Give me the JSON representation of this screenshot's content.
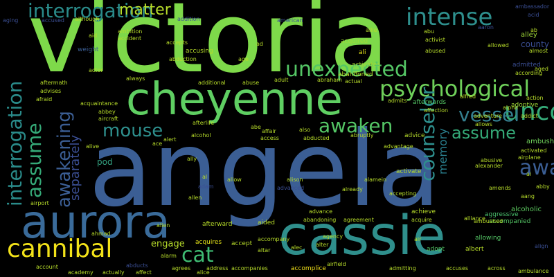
{
  "words": [
    {
      "text": "victoria",
      "color": "#7ed94a"
    },
    {
      "text": "angela",
      "color": "#3b5e94"
    },
    {
      "text": "cheyenne",
      "color": "#5fcf62"
    },
    {
      "text": "cassie",
      "color": "#2f8f8c"
    },
    {
      "text": "aurora",
      "color": "#3a6b9a"
    },
    {
      "text": "psychological",
      "color": "#6fd05a"
    },
    {
      "text": "cannibal",
      "color": "#f2e219"
    },
    {
      "text": "interrogation",
      "color": "#2a8b8a"
    },
    {
      "text": "matter",
      "color": "#b7dc2a"
    },
    {
      "text": "unexpected",
      "color": "#54c665"
    },
    {
      "text": "intense",
      "color": "#2e8f8d"
    },
    {
      "text": "uncover",
      "color": "#35aa78"
    },
    {
      "text": "cat",
      "color": "#3fbc73"
    },
    {
      "text": "awaken",
      "color": "#54c665"
    },
    {
      "text": "mouse",
      "color": "#2e8f8d"
    },
    {
      "text": "vessel",
      "color": "#347f8f"
    },
    {
      "text": "assume",
      "color": "#35aa78"
    },
    {
      "text": "awakening",
      "color": "#3b5e94"
    },
    {
      "text": "engage",
      "color": "#b7dc2a"
    },
    {
      "text": "pod",
      "color": "#33a07f"
    },
    {
      "text": "counselor",
      "color": "#2e8f8d"
    },
    {
      "text": "gu",
      "color": "#6fd05a"
    },
    {
      "text": "separately",
      "color": "#3b4f95"
    },
    {
      "text": "memory",
      "color": "#2a7f8e"
    },
    {
      "text": "weight",
      "color": "#3b5e94"
    },
    {
      "text": "county",
      "color": "#3b4f95"
    },
    {
      "text": "accepted",
      "color": "#a5db35"
    },
    {
      "text": "accidentally",
      "color": "#6fd05a"
    },
    {
      "text": "aggressive",
      "color": "#4ac16d"
    },
    {
      "text": "accompanied",
      "color": "#54c665"
    },
    {
      "text": "acquired",
      "color": "#9fd938"
    },
    {
      "text": "ali",
      "color": "#e6e419"
    },
    {
      "text": "aa",
      "color": "#54c665"
    },
    {
      "text": "accomplice",
      "color": "#f2e219"
    },
    {
      "text": "acrobatic",
      "color": "#3b4f95"
    },
    {
      "text": "alley",
      "color": "#9fd938"
    },
    {
      "text": "alcoholic",
      "color": "#5fcf62"
    },
    {
      "text": "ambush",
      "color": "#6fd05a"
    },
    {
      "text": "achieve",
      "color": "#b7dc2a"
    },
    {
      "text": "admitted",
      "color": "#3b4f95"
    },
    {
      "text": "accusing",
      "color": "#b7dc2a"
    },
    {
      "text": "accept",
      "color": "#b7dc2a"
    },
    {
      "text": "aided",
      "color": "#b7dc2a"
    },
    {
      "text": "afterward",
      "color": "#b7dc2a"
    },
    {
      "text": "acquires",
      "color": "#e6e419"
    },
    {
      "text": "afterwards",
      "color": "#54c665"
    },
    {
      "text": "advice",
      "color": "#b7dc2a"
    },
    {
      "text": "adoptive",
      "color": "#9fd938"
    },
    {
      "text": "ambiguous",
      "color": "#4a2f7a"
    },
    {
      "text": "abandoned",
      "color": "#b7dc2a"
    },
    {
      "text": "activates",
      "color": "#9fd938"
    },
    {
      "text": "activate",
      "color": "#b7dc2a"
    },
    {
      "text": "alters",
      "color": "#b7dc2a"
    },
    {
      "text": "albert",
      "color": "#b7dc2a"
    },
    {
      "text": "adopt",
      "color": "#54c665"
    },
    {
      "text": "allowing",
      "color": "#54c665"
    },
    {
      "text": "abbey",
      "color": "#b7dc2a"
    },
    {
      "text": "accidentally",
      "color": "#6fd05a"
    },
    {
      "text": "aging",
      "color": "#3b4f95"
    },
    {
      "text": "accused",
      "color": "#3b4f95"
    },
    {
      "text": "although",
      "color": "#b7dc2a"
    },
    {
      "text": "abigail",
      "color": "#3b4f95"
    },
    {
      "text": "addition",
      "color": "#3b4f95"
    },
    {
      "text": "african",
      "color": "#3b4f95"
    },
    {
      "text": "alerted",
      "color": "#3b4f95"
    },
    {
      "text": "agreeing",
      "color": "#3b4f95"
    },
    {
      "text": "ambassador",
      "color": "#3b4f95"
    },
    {
      "text": "acid",
      "color": "#3b4f95"
    },
    {
      "text": "acknowledges",
      "color": "#3b4f95"
    },
    {
      "text": "aaron",
      "color": "#3b4f95"
    },
    {
      "text": "aim",
      "color": "#3b4f95"
    },
    {
      "text": "american",
      "color": "#3b4f95"
    },
    {
      "text": "aid",
      "color": "#b7dc2a"
    },
    {
      "text": "ambition",
      "color": "#b7dc2a"
    },
    {
      "text": "act",
      "color": "#b7dc2a"
    },
    {
      "text": "able",
      "color": "#3b4f95"
    },
    {
      "text": "allie",
      "color": "#b7dc2a"
    },
    {
      "text": "abu",
      "color": "#b7dc2a"
    },
    {
      "text": "activist",
      "color": "#b7dc2a"
    },
    {
      "text": "agree",
      "color": "#3b4f95"
    },
    {
      "text": "accident",
      "color": "#b7dc2a"
    },
    {
      "text": "accepts",
      "color": "#b7dc2a"
    },
    {
      "text": "admiral",
      "color": "#b7dc2a"
    },
    {
      "text": "allowed",
      "color": "#b7dc2a"
    },
    {
      "text": "almost",
      "color": "#b7dc2a"
    },
    {
      "text": "ambitious",
      "color": "#b7dc2a"
    },
    {
      "text": "aide",
      "color": "#3b4f95"
    },
    {
      "text": "abduction",
      "color": "#b7dc2a"
    },
    {
      "text": "age",
      "color": "#b7dc2a"
    },
    {
      "text": "alone",
      "color": "#3b4f95"
    },
    {
      "text": "abused",
      "color": "#b7dc2a"
    },
    {
      "text": "according",
      "color": "#b7dc2a"
    },
    {
      "text": "aged",
      "color": "#b7dc2a"
    },
    {
      "text": "ambrose",
      "color": "#3b4f95"
    },
    {
      "text": "actor",
      "color": "#b7dc2a"
    },
    {
      "text": "america",
      "color": "#3b4f95"
    },
    {
      "text": "adult",
      "color": "#b7dc2a"
    },
    {
      "text": "abraham",
      "color": "#b7dc2a"
    },
    {
      "text": "actual",
      "color": "#b7dc2a"
    },
    {
      "text": "always",
      "color": "#b7dc2a"
    },
    {
      "text": "additional",
      "color": "#b7dc2a"
    },
    {
      "text": "abuse",
      "color": "#b7dc2a"
    },
    {
      "text": "aftermath",
      "color": "#b7dc2a"
    },
    {
      "text": "admits",
      "color": "#b7dc2a"
    },
    {
      "text": "alfred",
      "color": "#b7dc2a"
    },
    {
      "text": "action",
      "color": "#b7dc2a"
    },
    {
      "text": "advises",
      "color": "#b7dc2a"
    },
    {
      "text": "acknowledge",
      "color": "#3b4f95"
    },
    {
      "text": "afraid",
      "color": "#b7dc2a"
    },
    {
      "text": "absence",
      "color": "#3b4f95"
    },
    {
      "text": "acquaintance",
      "color": "#b7dc2a"
    },
    {
      "text": "allas",
      "color": "#3b4f95"
    },
    {
      "text": "affection",
      "color": "#b7dc2a"
    },
    {
      "text": "alpha",
      "color": "#b7dc2a"
    },
    {
      "text": "addict",
      "color": "#b7dc2a"
    },
    {
      "text": "abbey",
      "color": "#b7dc2a"
    },
    {
      "text": "aircraft",
      "color": "#b7dc2a"
    },
    {
      "text": "afterlife",
      "color": "#b7dc2a"
    },
    {
      "text": "abe",
      "color": "#b7dc2a"
    },
    {
      "text": "activity",
      "color": "#3b4f95"
    },
    {
      "text": "abruptly",
      "color": "#b7dc2a"
    },
    {
      "text": "allows",
      "color": "#b7dc2a"
    },
    {
      "text": "alright",
      "color": "#3b4f95"
    },
    {
      "text": "alive",
      "color": "#b7dc2a"
    },
    {
      "text": "afford",
      "color": "#3b4f95"
    },
    {
      "text": "alcohol",
      "color": "#b7dc2a"
    },
    {
      "text": "affair",
      "color": "#b7dc2a"
    },
    {
      "text": "also",
      "color": "#b7dc2a"
    },
    {
      "text": "access",
      "color": "#b7dc2a"
    },
    {
      "text": "abducted",
      "color": "#b7dc2a"
    },
    {
      "text": "advantage",
      "color": "#b7dc2a"
    },
    {
      "text": "adventure",
      "color": "#b7dc2a"
    },
    {
      "text": "ace",
      "color": "#b7dc2a"
    },
    {
      "text": "alert",
      "color": "#b7dc2a"
    },
    {
      "text": "activated",
      "color": "#b7dc2a"
    },
    {
      "text": "airplane",
      "color": "#b7dc2a"
    },
    {
      "text": "abusive",
      "color": "#b7dc2a"
    },
    {
      "text": "alongside",
      "color": "#3b4f95"
    },
    {
      "text": "abandon",
      "color": "#3b4f95"
    },
    {
      "text": "alexander",
      "color": "#b7dc2a"
    },
    {
      "text": "abortion",
      "color": "#3b4f95"
    },
    {
      "text": "abby",
      "color": "#b7dc2a"
    },
    {
      "text": "ally",
      "color": "#b7dc2a"
    },
    {
      "text": "allow",
      "color": "#b7dc2a"
    },
    {
      "text": "alison",
      "color": "#b7dc2a"
    },
    {
      "text": "alamein",
      "color": "#b7dc2a"
    },
    {
      "text": "amid",
      "color": "#b7dc2a"
    },
    {
      "text": "aboard",
      "color": "#b7dc2a"
    },
    {
      "text": "adam",
      "color": "#3b4f95"
    },
    {
      "text": "advanced",
      "color": "#3b4f95"
    },
    {
      "text": "already",
      "color": "#b7dc2a"
    },
    {
      "text": "accepting",
      "color": "#b7dc2a"
    },
    {
      "text": "amends",
      "color": "#b7dc2a"
    },
    {
      "text": "aang",
      "color": "#b7dc2a"
    },
    {
      "text": "allen",
      "color": "#b7dc2a"
    },
    {
      "text": "acting",
      "color": "#b7dc2a"
    },
    {
      "text": "airport",
      "color": "#b7dc2a"
    },
    {
      "text": "advance",
      "color": "#b7dc2a"
    },
    {
      "text": "actress",
      "color": "#3b4f95"
    },
    {
      "text": "abandoning",
      "color": "#b7dc2a"
    },
    {
      "text": "agreement",
      "color": "#b7dc2a"
    },
    {
      "text": "acquire",
      "color": "#b7dc2a"
    },
    {
      "text": "alliance",
      "color": "#b7dc2a"
    },
    {
      "text": "ambushed",
      "color": "#b7dc2a"
    },
    {
      "text": "alien",
      "color": "#b7dc2a"
    },
    {
      "text": "ahmad",
      "color": "#b7dc2a"
    },
    {
      "text": "accompany",
      "color": "#b7dc2a"
    },
    {
      "text": "agency",
      "color": "#b7dc2a"
    },
    {
      "text": "air",
      "color": "#b7dc2a"
    },
    {
      "text": "alter",
      "color": "#b7dc2a"
    },
    {
      "text": "alec",
      "color": "#b7dc2a"
    },
    {
      "text": "altar",
      "color": "#b7dc2a"
    },
    {
      "text": "alternate",
      "color": "#b7dc2a"
    },
    {
      "text": "align",
      "color": "#3b4f95"
    },
    {
      "text": "alarm",
      "color": "#b7dc2a"
    },
    {
      "text": "account",
      "color": "#b7dc2a"
    },
    {
      "text": "abducts",
      "color": "#3b4f95"
    },
    {
      "text": "agrees",
      "color": "#b7dc2a"
    },
    {
      "text": "address",
      "color": "#b7dc2a"
    },
    {
      "text": "accompanies",
      "color": "#b7dc2a"
    },
    {
      "text": "adopted",
      "color": "#b7dc2a"
    },
    {
      "text": "airfield",
      "color": "#b7dc2a"
    },
    {
      "text": "admitting",
      "color": "#b7dc2a"
    },
    {
      "text": "agent",
      "color": "#b7dc2a"
    },
    {
      "text": "accuses",
      "color": "#b7dc2a"
    },
    {
      "text": "across",
      "color": "#b7dc2a"
    },
    {
      "text": "ambulance",
      "color": "#b7dc2a"
    },
    {
      "text": "alan",
      "color": "#b7dc2a"
    },
    {
      "text": "academy",
      "color": "#b7dc2a"
    },
    {
      "text": "actually",
      "color": "#b7dc2a"
    },
    {
      "text": "affect",
      "color": "#b7dc2a"
    },
    {
      "text": "alice",
      "color": "#b7dc2a"
    },
    {
      "text": "ab",
      "color": "#b7dc2a"
    },
    {
      "text": "ad",
      "color": "#b7dc2a"
    },
    {
      "text": "al",
      "color": "#b7dc2a"
    },
    {
      "text": "ai",
      "color": "#b7dc2a"
    }
  ]
}
